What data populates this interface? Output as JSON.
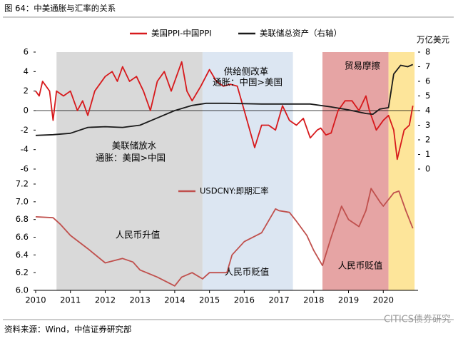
{
  "title": "图 64：中美通胀与汇率的关系",
  "source": "资料来源：Wind，中信证券研究部",
  "watermark": "CITICS债券研究",
  "chart_data": [
    {
      "type": "line",
      "xlim": [
        2010,
        2021
      ],
      "ylim": [
        -6,
        6
      ],
      "yticks": [
        -6,
        -4,
        -2,
        0,
        2,
        4,
        6
      ],
      "y2lim": [
        0,
        8
      ],
      "y2ticks": [
        0,
        1,
        2,
        3,
        4,
        5,
        6,
        7,
        8
      ],
      "y2label": "万亿美元",
      "bands": [
        {
          "from": 2010.6,
          "to": 2014.8,
          "color": "#d9d9d9"
        },
        {
          "from": 2014.8,
          "to": 2017.4,
          "color": "#dce6f2"
        },
        {
          "from": 2018.25,
          "to": 2020.15,
          "color": "#e6a4a4"
        },
        {
          "from": 2020.15,
          "to": 2020.9,
          "color": "#fde59a"
        }
      ],
      "annotations": [
        "供给侧改革",
        "通胀：中国>美国",
        "贸易摩擦",
        "美联储放水",
        "通胀：美国>中国"
      ],
      "series": [
        {
          "name": "美国PPI-中国PPI",
          "color": "#d7191c",
          "x": [
            2010.0,
            2010.1,
            2010.2,
            2010.4,
            2010.5,
            2010.6,
            2010.8,
            2011.0,
            2011.2,
            2011.35,
            2011.5,
            2011.7,
            2012.0,
            2012.2,
            2012.35,
            2012.5,
            2012.7,
            2012.9,
            2013.1,
            2013.3,
            2013.5,
            2013.7,
            2013.9,
            2014.2,
            2014.35,
            2014.5,
            2014.75,
            2015.0,
            2015.2,
            2015.4,
            2015.6,
            2015.8,
            2016.0,
            2016.3,
            2016.5,
            2016.7,
            2016.9,
            2017.1,
            2017.3,
            2017.5,
            2017.7,
            2017.9,
            2018.1,
            2018.2,
            2018.35,
            2018.5,
            2018.7,
            2018.9,
            2019.1,
            2019.3,
            2019.5,
            2019.6,
            2019.8,
            2020.0,
            2020.15,
            2020.3,
            2020.4,
            2020.6,
            2020.75,
            2020.85
          ],
          "values": [
            2,
            1.5,
            3,
            2,
            -1,
            2,
            1.5,
            2,
            0,
            1,
            -0.5,
            2,
            3.5,
            4,
            3,
            4.5,
            3,
            3.5,
            2,
            0,
            3,
            4,
            2,
            5,
            2,
            1,
            2.5,
            4.2,
            3,
            2.5,
            2.7,
            2.5,
            0,
            -3.8,
            -1.5,
            -1.5,
            -2,
            0.5,
            -1,
            -1.5,
            -0.8,
            -2.8,
            -2,
            -1.8,
            -2.5,
            -2.3,
            0,
            1,
            1,
            0,
            1.5,
            0,
            -2,
            -1,
            -0.5,
            -2,
            -5,
            -2,
            -1.5,
            0.5
          ]
        },
        {
          "name": "美联储总资产（右轴）",
          "color": "#1a1a1a",
          "axis": "y2",
          "x": [
            2010.0,
            2010.5,
            2011.0,
            2011.5,
            2012.0,
            2012.5,
            2013.0,
            2013.5,
            2014.0,
            2014.5,
            2014.9,
            2015.5,
            2016.5,
            2017.5,
            2017.9,
            2018.5,
            2019.0,
            2019.5,
            2019.7,
            2019.9,
            2020.15,
            2020.3,
            2020.5,
            2020.7,
            2020.85
          ],
          "values": [
            2.3,
            2.35,
            2.45,
            2.85,
            2.9,
            2.85,
            3.0,
            3.5,
            4.0,
            4.35,
            4.5,
            4.5,
            4.45,
            4.45,
            4.45,
            4.25,
            4.05,
            3.8,
            3.75,
            4.1,
            4.2,
            6.5,
            7.1,
            7.0,
            7.15
          ]
        }
      ]
    },
    {
      "type": "line",
      "xlim": [
        2010,
        2021
      ],
      "xticks": [
        2010,
        2011,
        2012,
        2013,
        2014,
        2015,
        2016,
        2017,
        2018,
        2019,
        2020
      ],
      "ylim": [
        6,
        7.2
      ],
      "yticks": [
        {
          "value": 6,
          "label": "6.0"
        },
        6.2,
        6.4,
        6.6,
        6.8,
        {
          "value": 7,
          "label": "7.0"
        },
        7.2
      ],
      "annotations": [
        "人民币升值",
        "人民币贬值",
        "人民币贬值"
      ],
      "series": [
        {
          "name": "USDCNY:即期汇率",
          "color": "#c0504d",
          "x": [
            2010.0,
            2010.5,
            2010.7,
            2011.0,
            2011.5,
            2012.0,
            2012.5,
            2012.8,
            2013.0,
            2013.5,
            2014.0,
            2014.2,
            2014.5,
            2014.8,
            2015.0,
            2015.5,
            2015.65,
            2016.0,
            2016.5,
            2016.9,
            2017.0,
            2017.3,
            2017.5,
            2017.8,
            2018.0,
            2018.25,
            2018.5,
            2018.8,
            2019.0,
            2019.3,
            2019.5,
            2019.65,
            2019.9,
            2020.0,
            2020.3,
            2020.45,
            2020.65,
            2020.85
          ],
          "values": [
            6.83,
            6.82,
            6.75,
            6.62,
            6.47,
            6.31,
            6.36,
            6.32,
            6.23,
            6.15,
            6.05,
            6.15,
            6.2,
            6.13,
            6.2,
            6.2,
            6.4,
            6.55,
            6.65,
            6.92,
            6.9,
            6.88,
            6.78,
            6.62,
            6.45,
            6.28,
            6.6,
            6.95,
            6.8,
            6.72,
            6.9,
            7.15,
            7.0,
            6.95,
            7.1,
            7.12,
            6.9,
            6.7
          ]
        }
      ]
    }
  ]
}
